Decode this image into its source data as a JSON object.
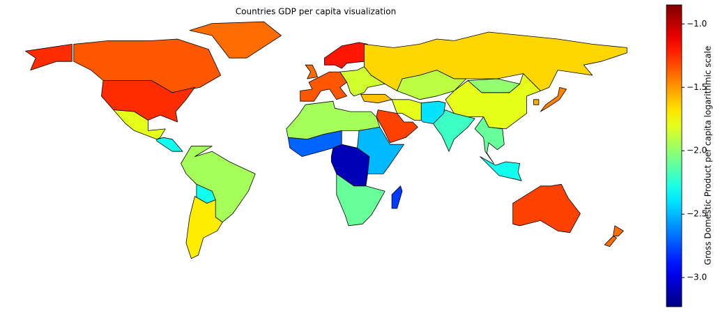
{
  "chart_data": {
    "type": "choropleth",
    "title": "Countries GDP per capita visualization",
    "colorbar_label": "Gross Domestic Product per capita logarithmic scale",
    "colormap": "jet",
    "values": [
      -1.35,
      -1.25,
      -1.4,
      -1.8,
      -2.3,
      -1.95,
      -2.3,
      -1.7,
      -1.35,
      -1.2,
      -1.4,
      -1.85,
      -1.65,
      -1.9,
      -1.8,
      -2.0,
      -2.2,
      -1.3,
      -1.6,
      -1.8,
      -2.4,
      -1.95,
      -2.7,
      -3.1,
      -2.5,
      -2.1,
      -2.8,
      -2.1,
      -2.3,
      -1.45,
      -1.55,
      -1.3,
      -1.4,
      -1.25
    ],
    "ylim": [
      -3.23,
      -0.85
    ],
    "yticks": [
      {
        "value": -3.0,
        "label": "−3.0"
      },
      {
        "value": -2.5,
        "label": "−2.5"
      },
      {
        "value": -2.0,
        "label": "−2.0"
      },
      {
        "value": -1.5,
        "label": "−1.5"
      },
      {
        "value": -1.0,
        "label": "−1.0"
      }
    ]
  }
}
